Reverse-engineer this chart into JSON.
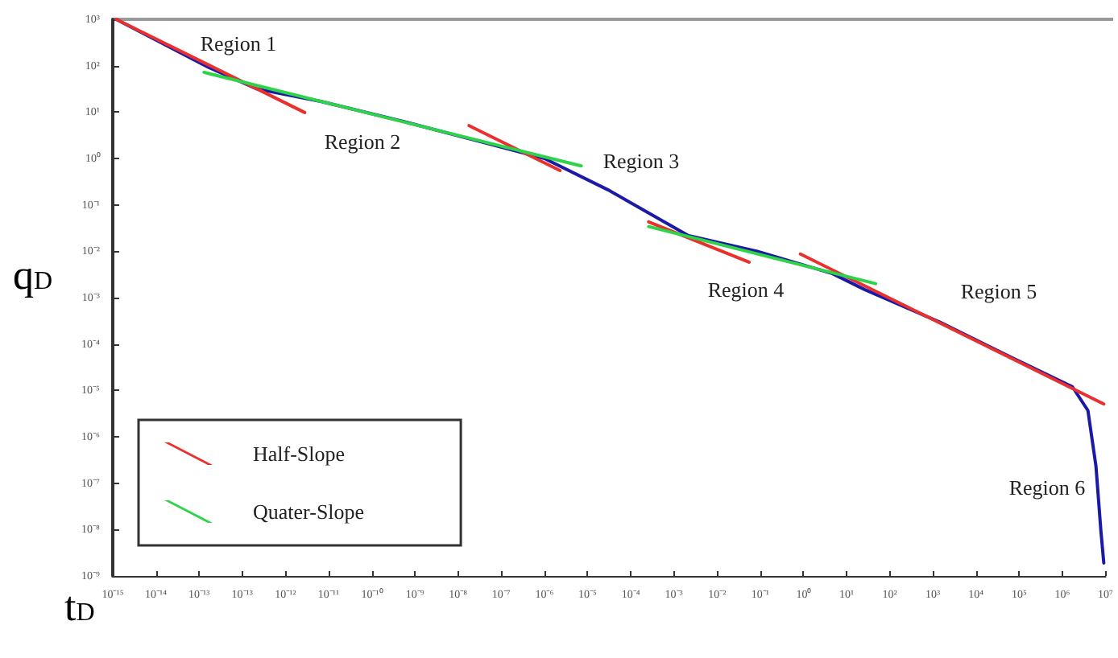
{
  "chart_data": {
    "type": "line",
    "xlabel": "t$_{D}$",
    "ylabel": "q$_{D}$",
    "log": "xy",
    "grid": false,
    "legend": "bottom left",
    "marker": "none",
    "line_style": "solid",
    "xlim": [
      1e-16,
      10000000.0
    ],
    "ylim": [
      1e-09,
      1000
    ],
    "xticks": [
      {
        "value": 1e-16,
        "label": "10⁻¹⁵"
      },
      {
        "value": 1e-15,
        "label": "10⁻¹⁴"
      },
      {
        "value": 1e-14,
        "label": "10⁻¹³"
      },
      {
        "value": 1e-13,
        "label": "10⁻¹³"
      },
      {
        "value": 1e-12,
        "label": "10⁻¹²"
      },
      {
        "value": 1e-11,
        "label": "10⁻¹¹"
      },
      {
        "value": 1e-10,
        "label": "10⁻¹⁰"
      },
      {
        "value": 1e-09,
        "label": "10⁻⁹"
      },
      {
        "value": 1e-08,
        "label": "10⁻⁸"
      },
      {
        "value": 1e-07,
        "label": "10⁻⁷"
      },
      {
        "value": 1e-06,
        "label": "10⁻⁶"
      },
      {
        "value": 1e-05,
        "label": "10⁻⁵"
      },
      {
        "value": 0.0001,
        "label": "10⁻⁴"
      },
      {
        "value": 0.001,
        "label": "10⁻³"
      },
      {
        "value": 0.01,
        "label": "10⁻²"
      },
      {
        "value": 0.1,
        "label": "10⁻¹"
      },
      {
        "value": 1,
        "label": "10⁰"
      },
      {
        "value": 10,
        "label": "10¹"
      },
      {
        "value": 100,
        "label": "10²"
      },
      {
        "value": 1000,
        "label": "10³"
      },
      {
        "value": 10000,
        "label": "10⁴"
      },
      {
        "value": 100000,
        "label": "10⁵"
      },
      {
        "value": 1000000,
        "label": "10⁶"
      },
      {
        "value": 10000000,
        "label": "10⁷"
      }
    ],
    "yticks": [
      {
        "value": 1e-09,
        "label": "10⁻⁹"
      },
      {
        "value": 1e-08,
        "label": "10⁻⁸"
      },
      {
        "value": 1e-07,
        "label": "10⁻⁷"
      },
      {
        "value": 1e-06,
        "label": "10⁻⁶"
      },
      {
        "value": 1e-05,
        "label": "10⁻⁵"
      },
      {
        "value": 0.0001,
        "label": "10⁻⁴"
      },
      {
        "value": 0.001,
        "label": "10⁻³"
      },
      {
        "value": 0.01,
        "label": "10⁻²"
      },
      {
        "value": 0.1,
        "label": "10⁻¹"
      },
      {
        "value": 1,
        "label": "10⁰"
      },
      {
        "value": 10,
        "label": "10¹"
      },
      {
        "value": 100,
        "label": "10²"
      },
      {
        "value": 1000,
        "label": "10³"
      }
    ],
    "series": [
      {
        "color": "#1a1aa6",
        "x": [
          1.2e-16,
          1.7e-14,
          2.1e-13,
          6.5e-12,
          4.7e-10,
          3.3e-08,
          1e-06,
          3e-05,
          0.0021,
          0.085,
          4.7,
          26,
          1400,
          55000,
          1700000.0,
          3900000.0,
          6000000.0,
          7800000.0,
          9100000.0
        ],
        "values": [
          1000,
          91,
          32,
          17,
          6.5,
          2.3,
          1.0,
          0.21,
          0.022,
          0.01,
          0.0033,
          0.0015,
          0.0003,
          5.6e-05,
          1.2e-05,
          3.7e-06,
          2.3e-07,
          9.3e-09,
          1.9e-09
        ]
      },
      {
        "name": "Half-Slope",
        "color": "#e8312f",
        "x": [
          1.2e-16,
          2.8e-12,
          1e-10,
          1.8e-08,
          2.3e-06,
          1e-05,
          0.00026,
          0.055,
          0.2,
          0.85,
          9100000.0
        ],
        "values": [
          1000,
          9.8,
          null,
          5.1,
          0.55,
          null,
          0.043,
          0.0058,
          null,
          0.0087,
          5.1e-06
        ]
      },
      {
        "name": "Quater-Slope",
        "color": "#2ed34a",
        "x": [
          1.3e-14,
          7.1e-06,
          3e-05,
          0.00026,
          47
        ],
        "values": [
          72,
          0.69,
          null,
          0.034,
          0.002
        ]
      }
    ],
    "annotations": [
      "Region 1",
      "Region 2",
      "Region 3",
      "Region 4",
      "Region 5",
      "Region 6"
    ]
  }
}
